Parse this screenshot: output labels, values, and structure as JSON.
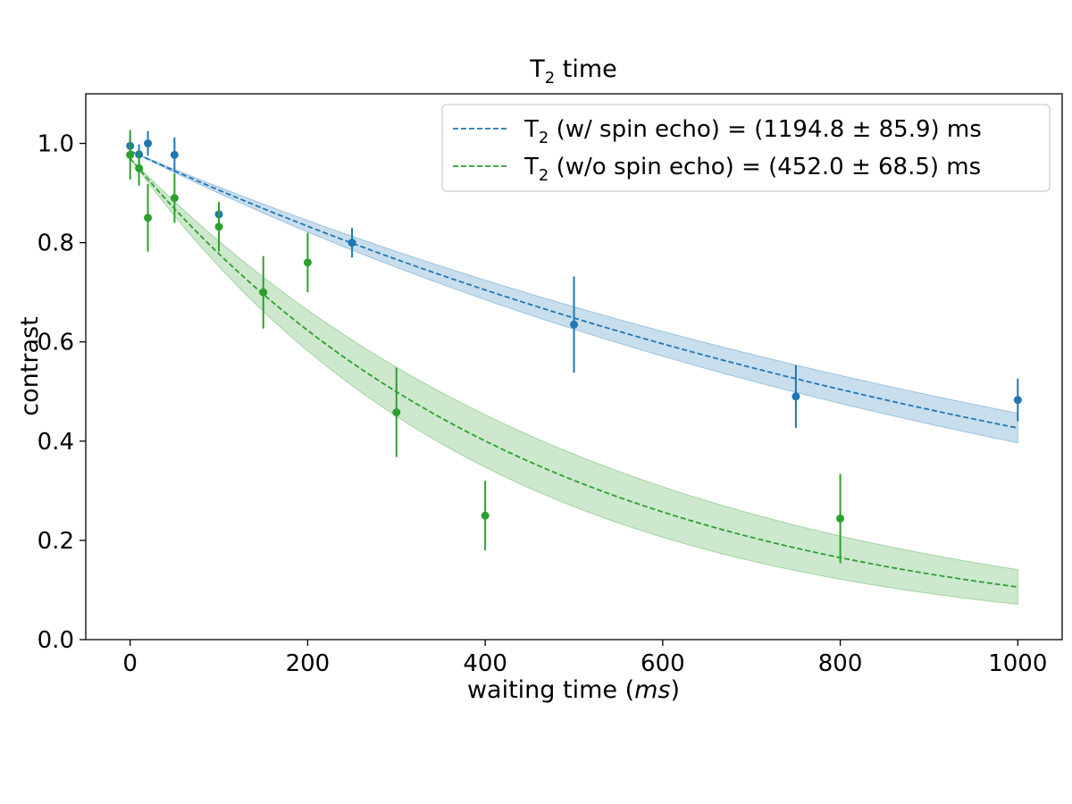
{
  "chart_data": {
    "type": "scatter",
    "title": "T",
    "title_sub": "2",
    "title_rest": " time",
    "xlabel": "waiting time (",
    "xlabel_unit": "ms",
    "xlabel_end": ")",
    "ylabel": "contrast",
    "xlim": [
      -50,
      1050
    ],
    "ylim": [
      0.0,
      1.1
    ],
    "xticks": [
      0,
      200,
      400,
      600,
      800,
      1000
    ],
    "xtick_labels": [
      "0",
      "200",
      "400",
      "600",
      "800",
      "1000"
    ],
    "yticks": [
      0.0,
      0.2,
      0.4,
      0.6,
      0.8,
      1.0
    ],
    "ytick_labels": [
      "0.0",
      "0.2",
      "0.4",
      "0.6",
      "0.8",
      "1.0"
    ],
    "legend_position": "top-right",
    "series": [
      {
        "name": "w/ spin echo",
        "color": "#1f77b4",
        "legend_label": {
          "pre": "T",
          "sub": "2",
          "rest": " (w/ spin echo) = (1194.8 ± 85.9) ms"
        },
        "x": [
          0,
          10,
          20,
          50,
          100,
          250,
          500,
          750,
          1000
        ],
        "y": [
          0.995,
          0.978,
          1.0,
          0.977,
          0.857,
          0.8,
          0.635,
          0.49,
          0.483
        ],
        "yerr": [
          0.02,
          0.02,
          0.025,
          0.035,
          0.02,
          0.03,
          0.097,
          0.063,
          0.043
        ],
        "fit": {
          "A": 0.985,
          "T": 1194.8,
          "band_rel": 0.07
        }
      },
      {
        "name": "w/o spin echo",
        "color": "#2ca02c",
        "legend_label": {
          "pre": "T",
          "sub": "2",
          "rest": " (w/o spin echo) = (452.0 ± 68.5) ms"
        },
        "x": [
          0,
          10,
          20,
          50,
          100,
          150,
          200,
          300,
          400,
          800
        ],
        "y": [
          0.977,
          0.95,
          0.85,
          0.89,
          0.832,
          0.7,
          0.76,
          0.458,
          0.25,
          0.244
        ],
        "yerr": [
          0.05,
          0.035,
          0.068,
          0.05,
          0.05,
          0.073,
          0.06,
          0.09,
          0.07,
          0.09
        ],
        "fit": {
          "A": 0.97,
          "T": 452.0,
          "band_rel": 0.33
        }
      }
    ]
  }
}
